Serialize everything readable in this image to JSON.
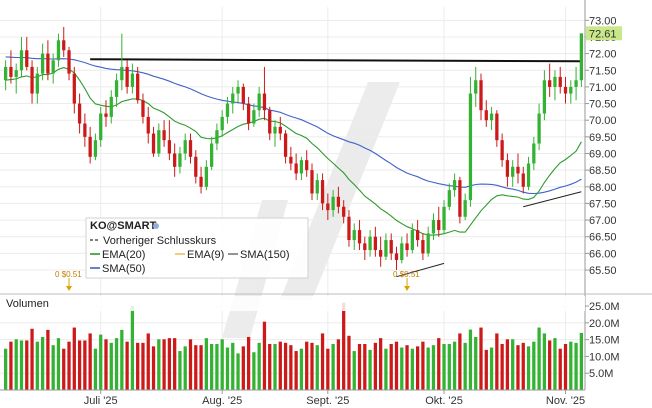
{
  "chart_data": {
    "type": "candlestick",
    "symbol": "KO@SMART",
    "price_axis": {
      "ylim": [
        64.9,
        73.4
      ],
      "ticks": [
        "73.00",
        "72.50",
        "72.00",
        "71.50",
        "71.00",
        "70.50",
        "70.00",
        "69.50",
        "69.00",
        "68.50",
        "68.00",
        "67.50",
        "67.00",
        "66.50",
        "66.00",
        "65.50"
      ]
    },
    "last_price": "72.61",
    "last_price_value": 72.61,
    "previous_close_value": 71.8,
    "x_labels": [
      {
        "label": "Juli '25",
        "index": 18
      },
      {
        "label": "Aug. '25",
        "index": 41
      },
      {
        "label": "Sept. '25",
        "index": 61
      },
      {
        "label": "Okt. '25",
        "index": 83
      },
      {
        "label": "Nov. '25",
        "index": 106
      },
      {
        "label": "+",
        "index": 126
      }
    ],
    "legend": {
      "title": "KO@SMART",
      "items": [
        "Vorheriger Schlusskurs",
        "EMA(20)",
        "EMA(9)",
        "SMA(150)",
        "SMA(50)"
      ]
    },
    "dividend_markers": [
      "0 $0.51",
      "0 $0.51"
    ],
    "dividend_indices": [
      12,
      76
    ],
    "volume_panel": {
      "title": "Volumen",
      "ylim": [
        0,
        28
      ],
      "ticks": [
        "25.0M",
        "20.0M",
        "15.0M",
        "10.0M",
        "5.0M"
      ],
      "tick_values": [
        25,
        20,
        15,
        10,
        5
      ]
    },
    "ohlc": [
      [
        71.2,
        71.8,
        70.9,
        71.6
      ],
      [
        71.6,
        72.1,
        71.1,
        71.3
      ],
      [
        71.3,
        71.7,
        70.8,
        71.5
      ],
      [
        71.5,
        72.5,
        71.3,
        72.1
      ],
      [
        72.1,
        72.5,
        71.5,
        71.6
      ],
      [
        71.6,
        71.8,
        70.5,
        70.8
      ],
      [
        70.8,
        71.6,
        70.5,
        71.4
      ],
      [
        71.4,
        72.3,
        71.2,
        72.0
      ],
      [
        72.0,
        72.4,
        71.2,
        71.4
      ],
      [
        71.4,
        72.0,
        71.1,
        71.8
      ],
      [
        71.8,
        72.6,
        71.6,
        72.4
      ],
      [
        72.4,
        72.8,
        71.9,
        72.1
      ],
      [
        72.1,
        72.2,
        71.2,
        71.4
      ],
      [
        71.4,
        71.6,
        70.2,
        70.5
      ],
      [
        70.5,
        70.8,
        69.6,
        69.9
      ],
      [
        69.9,
        70.2,
        69.2,
        69.5
      ],
      [
        69.5,
        69.8,
        68.7,
        68.9
      ],
      [
        68.9,
        69.6,
        68.8,
        69.4
      ],
      [
        69.4,
        70.4,
        69.2,
        70.2
      ],
      [
        70.2,
        70.6,
        69.8,
        70.1
      ],
      [
        70.1,
        70.9,
        69.9,
        70.7
      ],
      [
        70.7,
        71.4,
        70.4,
        71.2
      ],
      [
        71.2,
        72.6,
        70.9,
        71.6
      ],
      [
        71.6,
        71.8,
        70.8,
        71.0
      ],
      [
        71.0,
        71.7,
        70.8,
        71.4
      ],
      [
        71.4,
        71.6,
        70.5,
        70.6
      ],
      [
        70.6,
        70.8,
        69.9,
        70.1
      ],
      [
        70.1,
        70.4,
        69.3,
        69.6
      ],
      [
        69.6,
        69.8,
        68.9,
        69.0
      ],
      [
        69.0,
        69.9,
        68.9,
        69.7
      ],
      [
        69.7,
        70.0,
        69.2,
        69.4
      ],
      [
        69.4,
        70.0,
        68.8,
        69.0
      ],
      [
        69.0,
        69.3,
        68.3,
        68.6
      ],
      [
        68.6,
        69.2,
        68.4,
        69.0
      ],
      [
        69.0,
        69.6,
        68.8,
        69.4
      ],
      [
        69.4,
        69.6,
        68.7,
        68.9
      ],
      [
        68.9,
        69.1,
        68.1,
        68.3
      ],
      [
        68.3,
        68.6,
        67.8,
        68.0
      ],
      [
        68.0,
        68.8,
        67.9,
        68.6
      ],
      [
        68.6,
        69.5,
        68.5,
        69.3
      ],
      [
        69.3,
        69.9,
        69.1,
        69.7
      ],
      [
        69.7,
        70.3,
        69.5,
        70.1
      ],
      [
        70.1,
        70.7,
        69.9,
        70.5
      ],
      [
        70.5,
        71.0,
        70.2,
        70.8
      ],
      [
        70.8,
        71.2,
        70.5,
        71.0
      ],
      [
        71.0,
        71.1,
        70.3,
        70.5
      ],
      [
        70.5,
        70.7,
        69.7,
        69.9
      ],
      [
        69.9,
        70.5,
        69.8,
        70.3
      ],
      [
        70.3,
        71.0,
        70.1,
        70.8
      ],
      [
        70.8,
        71.6,
        70.0,
        70.3
      ],
      [
        70.3,
        70.4,
        69.4,
        69.6
      ],
      [
        69.6,
        70.0,
        69.2,
        69.8
      ],
      [
        69.8,
        70.1,
        69.4,
        69.6
      ],
      [
        69.6,
        69.7,
        68.7,
        68.9
      ],
      [
        68.9,
        69.2,
        68.5,
        68.7
      ],
      [
        68.7,
        69.0,
        68.2,
        68.4
      ],
      [
        68.4,
        68.9,
        68.2,
        68.8
      ],
      [
        68.8,
        69.1,
        68.3,
        68.5
      ],
      [
        68.5,
        68.7,
        67.6,
        67.8
      ],
      [
        67.8,
        68.4,
        67.6,
        68.2
      ],
      [
        68.2,
        68.4,
        67.3,
        67.5
      ],
      [
        67.5,
        67.8,
        67.0,
        67.3
      ],
      [
        67.3,
        67.9,
        67.1,
        67.7
      ],
      [
        67.7,
        68.0,
        67.2,
        67.4
      ],
      [
        67.4,
        67.6,
        66.9,
        67.1
      ],
      [
        67.1,
        67.3,
        66.2,
        66.4
      ],
      [
        66.4,
        66.9,
        66.1,
        66.7
      ],
      [
        66.7,
        67.0,
        66.1,
        66.3
      ],
      [
        66.3,
        66.5,
        65.8,
        66.1
      ],
      [
        66.1,
        66.7,
        65.9,
        66.5
      ],
      [
        66.5,
        66.8,
        65.9,
        66.1
      ],
      [
        66.1,
        66.5,
        65.6,
        65.9
      ],
      [
        65.9,
        66.6,
        65.8,
        66.4
      ],
      [
        66.4,
        66.6,
        65.8,
        66.0
      ],
      [
        66.0,
        66.2,
        65.5,
        65.8
      ],
      [
        65.8,
        66.5,
        65.7,
        66.3
      ],
      [
        66.3,
        66.6,
        65.9,
        66.1
      ],
      [
        66.1,
        66.9,
        66.0,
        66.7
      ],
      [
        66.7,
        67.0,
        66.2,
        66.4
      ],
      [
        66.4,
        66.6,
        65.8,
        66.0
      ],
      [
        66.0,
        66.8,
        65.9,
        66.6
      ],
      [
        66.6,
        67.2,
        66.4,
        67.0
      ],
      [
        67.0,
        67.4,
        66.5,
        66.7
      ],
      [
        66.7,
        67.6,
        66.6,
        67.4
      ],
      [
        67.4,
        68.1,
        67.3,
        67.9
      ],
      [
        67.9,
        68.4,
        67.7,
        68.2
      ],
      [
        68.2,
        68.3,
        66.9,
        67.1
      ],
      [
        67.1,
        67.8,
        67.0,
        67.6
      ],
      [
        67.6,
        71.3,
        67.4,
        70.8
      ],
      [
        70.8,
        71.6,
        70.4,
        71.2
      ],
      [
        71.2,
        71.4,
        70.0,
        70.3
      ],
      [
        70.3,
        70.6,
        69.8,
        70.0
      ],
      [
        70.0,
        70.4,
        69.7,
        70.2
      ],
      [
        70.2,
        70.3,
        69.2,
        69.4
      ],
      [
        69.4,
        69.6,
        68.6,
        68.8
      ],
      [
        68.8,
        69.0,
        68.0,
        68.3
      ],
      [
        68.3,
        68.8,
        68.0,
        68.6
      ],
      [
        68.6,
        69.0,
        68.1,
        68.4
      ],
      [
        68.4,
        68.6,
        67.8,
        68.0
      ],
      [
        68.0,
        68.9,
        67.9,
        68.7
      ],
      [
        68.7,
        69.5,
        68.5,
        69.3
      ],
      [
        69.3,
        70.5,
        69.1,
        70.2
      ],
      [
        70.2,
        71.5,
        70.0,
        71.2
      ],
      [
        71.2,
        71.7,
        70.7,
        71.0
      ],
      [
        71.0,
        71.5,
        70.6,
        71.3
      ],
      [
        71.3,
        71.6,
        70.8,
        71.0
      ],
      [
        71.0,
        71.3,
        70.5,
        70.8
      ],
      [
        70.8,
        71.2,
        70.5,
        71.0
      ],
      [
        71.0,
        71.6,
        70.6,
        71.2
      ],
      [
        71.2,
        72.6,
        71.0,
        72.61
      ]
    ],
    "ema20": [
      71.2,
      71.22,
      71.24,
      71.3,
      71.33,
      71.28,
      71.3,
      71.37,
      71.37,
      71.42,
      71.53,
      71.58,
      71.53,
      71.42,
      71.2,
      70.95,
      70.66,
      70.49,
      70.45,
      70.42,
      70.4,
      70.46,
      70.56,
      70.6,
      70.64,
      70.64,
      70.59,
      70.5,
      70.36,
      70.3,
      70.22,
      70.1,
      69.97,
      69.9,
      69.85,
      69.76,
      69.66,
      69.49,
      69.45,
      69.44,
      69.47,
      69.53,
      69.63,
      69.72,
      69.81,
      69.88,
      69.91,
      69.96,
      70.03,
      70.06,
      69.97,
      69.96,
      69.92,
      69.82,
      69.71,
      69.6,
      69.54,
      69.46,
      69.3,
      69.17,
      69.01,
      68.85,
      68.71,
      68.56,
      68.42,
      68.22,
      68.07,
      67.9,
      67.72,
      67.6,
      67.48,
      67.34,
      67.24,
      67.12,
      66.99,
      66.89,
      66.8,
      66.74,
      66.67,
      66.59,
      66.55,
      66.55,
      66.56,
      66.59,
      66.64,
      66.69,
      66.64,
      66.64,
      66.85,
      67.07,
      67.28,
      67.45,
      67.62,
      67.73,
      67.76,
      67.73,
      67.71,
      67.69,
      67.63,
      67.62,
      67.68,
      67.87,
      68.13,
      68.35,
      68.55,
      68.72,
      68.82,
      68.94,
      69.07,
      69.35
    ]
  },
  "colors": {
    "up": "#33b233",
    "down": "#cc1a1a",
    "ema20": "#2e9a2e",
    "ema9": "#f0c060",
    "sma50": "#4063c8",
    "sma150": "#7a7a7a",
    "resistance": "#111111",
    "price_label": "#c8e88a"
  }
}
